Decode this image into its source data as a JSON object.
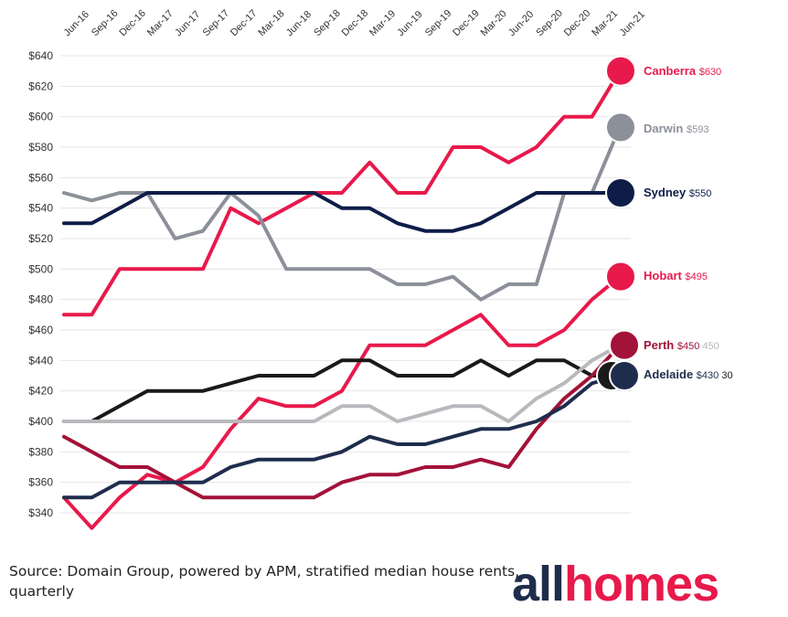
{
  "chart_data": {
    "type": "line",
    "x": [
      "Jun-16",
      "Sep-16",
      "Dec-16",
      "Mar-17",
      "Jun-17",
      "Sep-17",
      "Dec-17",
      "Mar-18",
      "Jun-18",
      "Sep-18",
      "Dec-18",
      "Mar-19",
      "Jun-19",
      "Sep-19",
      "Dec-19",
      "Mar-20",
      "Jun-20",
      "Sep-20",
      "Dec-20",
      "Mar-21",
      "Jun-21"
    ],
    "y_ticks": [
      "$640",
      "$620",
      "$600",
      "$580",
      "$560",
      "$540",
      "$520",
      "$500",
      "$480",
      "$460",
      "$440",
      "$420",
      "$400",
      "$380",
      "$360",
      "$340"
    ],
    "ylim": [
      340,
      640
    ],
    "grid": "horizontal",
    "series": [
      {
        "name": "Canberra",
        "value_label": "$630",
        "color": "#e8194b",
        "values": [
          470,
          470,
          500,
          500,
          500,
          500,
          540,
          530,
          540,
          550,
          550,
          570,
          550,
          550,
          580,
          580,
          570,
          580,
          600,
          600,
          630
        ]
      },
      {
        "name": "Darwin",
        "value_label": "$593",
        "color": "#8c9099",
        "values": [
          550,
          545,
          550,
          550,
          520,
          525,
          550,
          535,
          500,
          500,
          500,
          500,
          490,
          490,
          495,
          480,
          490,
          490,
          550,
          550,
          593
        ]
      },
      {
        "name": "Sydney",
        "value_label": "$550",
        "color": "#0e1d48",
        "values": [
          530,
          530,
          540,
          550,
          550,
          550,
          550,
          550,
          550,
          550,
          540,
          540,
          530,
          525,
          525,
          530,
          540,
          550,
          550,
          550,
          550
        ]
      },
      {
        "name": "Hobart",
        "value_label": "$495",
        "color": "#e8194b",
        "values": [
          350,
          330,
          350,
          365,
          360,
          370,
          395,
          415,
          410,
          410,
          420,
          450,
          450,
          450,
          460,
          470,
          450,
          450,
          460,
          480,
          495
        ]
      },
      {
        "value_label": "",
        "color": "#1a1a1a",
        "values": [
          400,
          400,
          410,
          420,
          420,
          420,
          425,
          430,
          430,
          430,
          440,
          440,
          430,
          430,
          430,
          440,
          430,
          440,
          440,
          430,
          430
        ]
      },
      {
        "value_label": "",
        "color": "#b8b8bd",
        "values": [
          400,
          400,
          400,
          400,
          400,
          400,
          400,
          400,
          400,
          400,
          410,
          410,
          400,
          405,
          410,
          410,
          400,
          415,
          425,
          440,
          450
        ]
      },
      {
        "name": "Perth",
        "value_label": "$450",
        "extra_label": "450",
        "color": "#a31238",
        "values": [
          390,
          380,
          370,
          370,
          360,
          350,
          350,
          350,
          350,
          350,
          360,
          365,
          365,
          370,
          370,
          375,
          370,
          395,
          415,
          430,
          450
        ]
      },
      {
        "name": "Adelaide",
        "value_label": "$430",
        "extra_label": "30",
        "color": "#1f2d4d",
        "values": [
          350,
          350,
          360,
          360,
          360,
          360,
          370,
          375,
          375,
          375,
          380,
          390,
          385,
          385,
          390,
          395,
          395,
          400,
          410,
          425,
          430
        ]
      }
    ],
    "source": "Source: Domain Group, powered by APM, stratified median house rents, quarterly"
  },
  "logo": {
    "text": "allhomes",
    "part1": "all",
    "part2": "homes",
    "color1": "#1f2d4d",
    "color2": "#e8194b"
  }
}
